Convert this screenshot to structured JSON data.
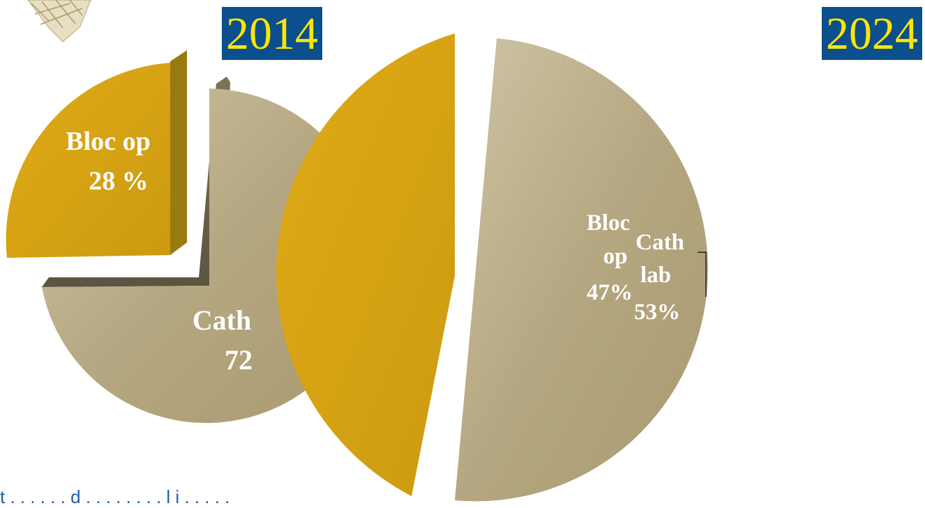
{
  "badges": {
    "left_year": "2014",
    "right_year": "2024"
  },
  "footer": {
    "text": "t . . . . . . d . . . . . . . . l i . . . . ."
  },
  "colors": {
    "badge_bg": "#0b4f8c",
    "badge_text": "#ffe600",
    "gold": "#d8a212",
    "metal": "#b8ab86"
  },
  "chart_data": [
    {
      "type": "pie",
      "title": "2014",
      "slices": [
        {
          "label": "Bloc op",
          "value": 28,
          "display": "28 %"
        },
        {
          "label": "Cath lab",
          "value": 72,
          "display_lines": [
            "Cath",
            "72"
          ]
        }
      ]
    },
    {
      "type": "pie",
      "title": "2024",
      "slices": [
        {
          "label": "Bloc op",
          "value": 47,
          "display": "47%",
          "display_lines": [
            "Bloc",
            "op",
            "47%"
          ]
        },
        {
          "label": "Cath lab",
          "value": 53,
          "display": "53%",
          "display_lines": [
            "Cath",
            "lab",
            "53%"
          ]
        }
      ]
    }
  ]
}
